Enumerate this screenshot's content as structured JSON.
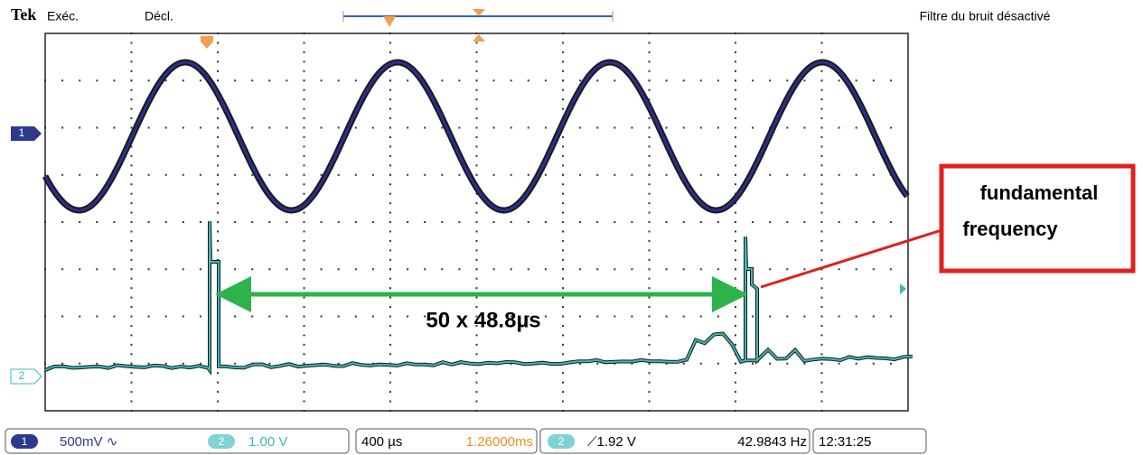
{
  "header": {
    "brand": "Tek",
    "run_state": "Exéc.",
    "trigger_state": "Décl.",
    "noise_filter": "Filtre du bruit désactivé"
  },
  "markers": {
    "channel_1": "1",
    "channel_2": "2"
  },
  "annotations": {
    "span": "50 x 48.8µs",
    "callout_line_1": "fundamental",
    "callout_line_2": "frequency"
  },
  "status_bar": {
    "ch1_badge": "1",
    "ch1_scale": "500mV ∿",
    "ch2_badge": "2",
    "ch2_scale": "1.00 V",
    "timebase": "400 µs",
    "position": "1.26000ms",
    "trigger_badge": "2",
    "trigger_level": "⟋1.92 V",
    "frequency": "42.9843 Hz",
    "clock": "12:31:25"
  }
}
